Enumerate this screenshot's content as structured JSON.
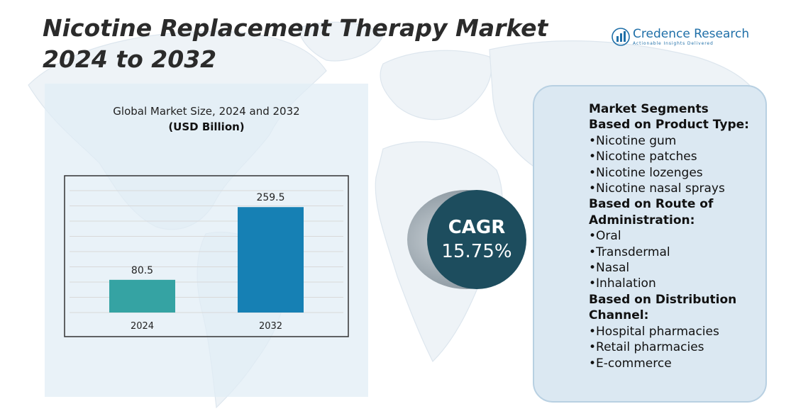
{
  "title": "Nicotine Replacement Therapy Market 2024 to 2032",
  "logo": {
    "name": "Credence Research",
    "tagline": "Actionable Insights Delivered",
    "icon": "bar-chart-logo-icon",
    "color": "#1f6fa8"
  },
  "chart_panel": {
    "title": "Global Market Size, 2024 and 2032",
    "units": "(USD Billion)"
  },
  "chart_data": {
    "type": "bar",
    "title": "Global Market Size, 2024 and 2032",
    "ylabel": "(USD Billion)",
    "xlabel": "",
    "categories": [
      "2024",
      "2032"
    ],
    "values": [
      80.5,
      259.5
    ],
    "data_labels": [
      "80.5",
      "259.5"
    ],
    "colors": [
      "#35a3a3",
      "#1680b4"
    ],
    "ylim": [
      0,
      300
    ],
    "grid": true,
    "gridline_step": 37.5,
    "legend": "none"
  },
  "cagr": {
    "label": "CAGR",
    "value": "15.75%",
    "color": "#1d4d5e"
  },
  "segments": {
    "items": [
      {
        "text": "Market Segments",
        "type": "heading"
      },
      {
        "text": "Based on Product Type:",
        "type": "heading"
      },
      {
        "text": "•Nicotine gum",
        "type": "item"
      },
      {
        "text": "•Nicotine patches",
        "type": "item"
      },
      {
        "text": "•Nicotine lozenges",
        "type": "item"
      },
      {
        "text": "•Nicotine nasal sprays",
        "type": "item"
      },
      {
        "text": "Based on Route of",
        "type": "heading"
      },
      {
        "text": "Administration:",
        "type": "heading"
      },
      {
        "text": "•Oral",
        "type": "item"
      },
      {
        "text": "•Transdermal",
        "type": "item"
      },
      {
        "text": "•Nasal",
        "type": "item"
      },
      {
        "text": "•Inhalation",
        "type": "item"
      },
      {
        "text": "Based on Distribution",
        "type": "heading"
      },
      {
        "text": "Channel:",
        "type": "heading"
      },
      {
        "text": "•Hospital pharmacies",
        "type": "item"
      },
      {
        "text": "•Retail pharmacies",
        "type": "item"
      },
      {
        "text": "•E-commerce",
        "type": "item"
      }
    ]
  }
}
